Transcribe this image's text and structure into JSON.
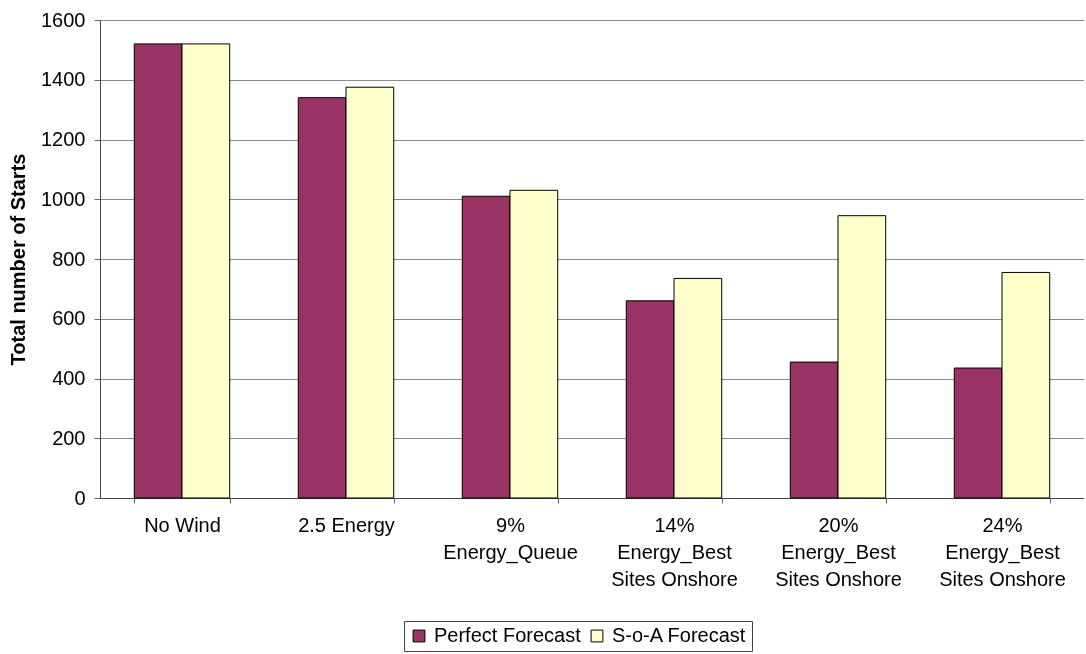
{
  "chart_data": {
    "type": "bar",
    "ylabel": "Total number of Starts",
    "categories": [
      "No Wind",
      "2.5 Energy",
      "9%\nEnergy_Queue",
      "14%\nEnergy_Best\nSites Onshore",
      "20%\nEnergy_Best\nSites Onshore",
      "24%\nEnergy_Best\nSites Onshore"
    ],
    "series": [
      {
        "name": "Perfect Forecast",
        "color": "#993366",
        "values": [
          1520,
          1340,
          1010,
          660,
          455,
          435
        ]
      },
      {
        "name": "S-o-A Forecast",
        "color": "#ffffcc",
        "values": [
          1520,
          1375,
          1030,
          735,
          945,
          755
        ]
      }
    ],
    "ylim": [
      0,
      1600
    ],
    "yticks": [
      0,
      200,
      400,
      600,
      800,
      1000,
      1200,
      1400,
      1600
    ],
    "grid": "y",
    "legend": "bottom"
  }
}
